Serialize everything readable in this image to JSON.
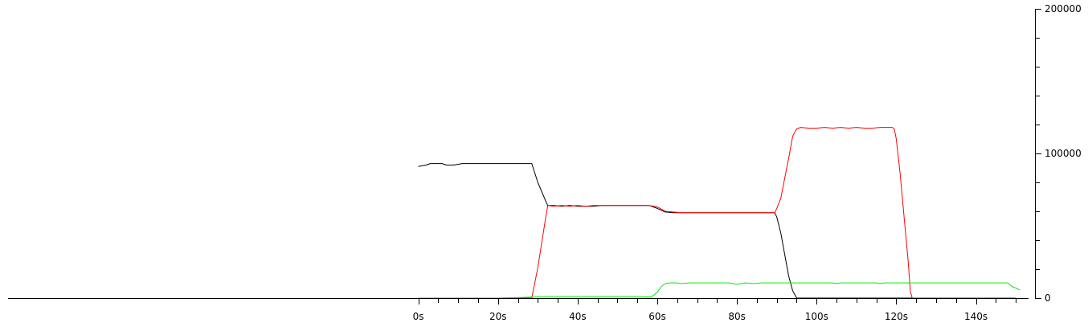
{
  "chart_data": {
    "type": "line",
    "x_ticks": [
      {
        "value": 0,
        "label": "0s"
      },
      {
        "value": 20,
        "label": "20s"
      },
      {
        "value": 40,
        "label": "40s"
      },
      {
        "value": 60,
        "label": "60s"
      },
      {
        "value": 80,
        "label": "80s"
      },
      {
        "value": 100,
        "label": "100s"
      },
      {
        "value": 120,
        "label": "120s"
      },
      {
        "value": 140,
        "label": "140s"
      }
    ],
    "y_ticks": [
      {
        "value": 0,
        "label": "0"
      },
      {
        "value": 100000,
        "label": "100000"
      },
      {
        "value": 200000,
        "label": "200000"
      }
    ],
    "xlim": [
      -103,
      153
    ],
    "ylim": [
      0,
      200000
    ],
    "x_minor_step": 5,
    "y_minor_step": 20000,
    "y_axis_position": "right",
    "grid": false,
    "legend": "none",
    "series": [
      {
        "color": "#000000",
        "x": [
          0,
          1,
          2,
          3,
          4,
          5,
          6,
          7,
          8,
          9,
          10,
          11,
          12,
          13,
          14,
          15,
          16,
          18,
          20,
          22,
          24,
          26,
          28,
          28.5,
          30,
          32,
          32.5,
          34,
          36,
          38,
          40,
          42,
          44,
          46,
          48,
          50,
          52,
          54,
          56,
          58,
          60,
          62,
          64,
          66,
          68,
          70,
          72,
          74,
          76,
          78,
          80,
          82,
          84,
          86,
          88,
          89.5,
          90,
          91,
          92,
          93,
          94,
          95,
          100,
          110,
          120,
          130,
          140,
          150
        ],
        "y": [
          91000,
          91500,
          92000,
          93000,
          93000,
          93000,
          93000,
          92000,
          92000,
          92000,
          92500,
          93000,
          93000,
          93000,
          93000,
          93000,
          93000,
          93000,
          93000,
          93000,
          93000,
          93000,
          93000,
          93000,
          80000,
          67000,
          64000,
          64000,
          63500,
          64000,
          63500,
          63500,
          63500,
          64000,
          64000,
          64000,
          64000,
          64000,
          64000,
          64000,
          62000,
          59500,
          59000,
          59000,
          59000,
          59000,
          59000,
          59000,
          59000,
          59000,
          59000,
          59000,
          59000,
          59000,
          59000,
          59000,
          56000,
          45000,
          30000,
          15000,
          5000,
          0,
          0,
          0,
          0,
          0,
          0,
          0
        ]
      },
      {
        "color": "#ff0000",
        "x": [
          0,
          5,
          10,
          15,
          20,
          25,
          28.5,
          30,
          32,
          32.5,
          34,
          36,
          38,
          40,
          42,
          44,
          46,
          48,
          50,
          52,
          54,
          56,
          58,
          60,
          62,
          64,
          66,
          68,
          70,
          72,
          74,
          76,
          78,
          80,
          82,
          84,
          86,
          88,
          89.5,
          90,
          91,
          92,
          93,
          94,
          95,
          96,
          98,
          100,
          102,
          104,
          106,
          108,
          110,
          112,
          114,
          116,
          118,
          119,
          119.5,
          120,
          121,
          122,
          123,
          123.5,
          124,
          130,
          140,
          150
        ],
        "y": [
          0,
          0,
          0,
          0,
          0,
          0,
          0,
          21000,
          56000,
          64000,
          63500,
          64000,
          63500,
          64000,
          63500,
          64000,
          64000,
          64000,
          64000,
          64000,
          64000,
          64000,
          64000,
          63000,
          60000,
          59500,
          59000,
          59000,
          59000,
          59000,
          59000,
          59000,
          59000,
          59000,
          59000,
          59000,
          59000,
          59000,
          59000,
          62000,
          69000,
          83000,
          97000,
          112000,
          117000,
          118000,
          117500,
          117500,
          118000,
          117500,
          118000,
          117500,
          118000,
          117500,
          117500,
          118000,
          118000,
          118000,
          117000,
          110000,
          85000,
          55000,
          25000,
          5000,
          0,
          0,
          0,
          0
        ]
      },
      {
        "color": "#00ee00",
        "x": [
          0,
          10,
          20,
          30,
          40,
          50,
          55,
          58.5,
          60,
          61,
          62,
          63,
          64,
          65,
          66,
          68,
          70,
          72,
          74,
          76,
          78,
          80,
          82,
          84,
          86,
          88,
          90,
          95,
          100,
          104,
          105,
          106,
          110,
          115,
          116,
          117,
          120,
          125,
          130,
          135,
          140,
          145,
          148,
          149,
          150,
          151
        ],
        "y": [
          0,
          0,
          0,
          800,
          800,
          800,
          800,
          800,
          4000,
          8000,
          10000,
          10500,
          10500,
          10500,
          10000,
          10500,
          10500,
          10500,
          10500,
          10500,
          10500,
          9500,
          10500,
          10000,
          10500,
          10500,
          10500,
          10500,
          10500,
          10500,
          10000,
          10500,
          10500,
          10500,
          10000,
          10500,
          10500,
          10500,
          10500,
          10500,
          10500,
          10500,
          10500,
          8000,
          7000,
          5500
        ]
      }
    ]
  }
}
